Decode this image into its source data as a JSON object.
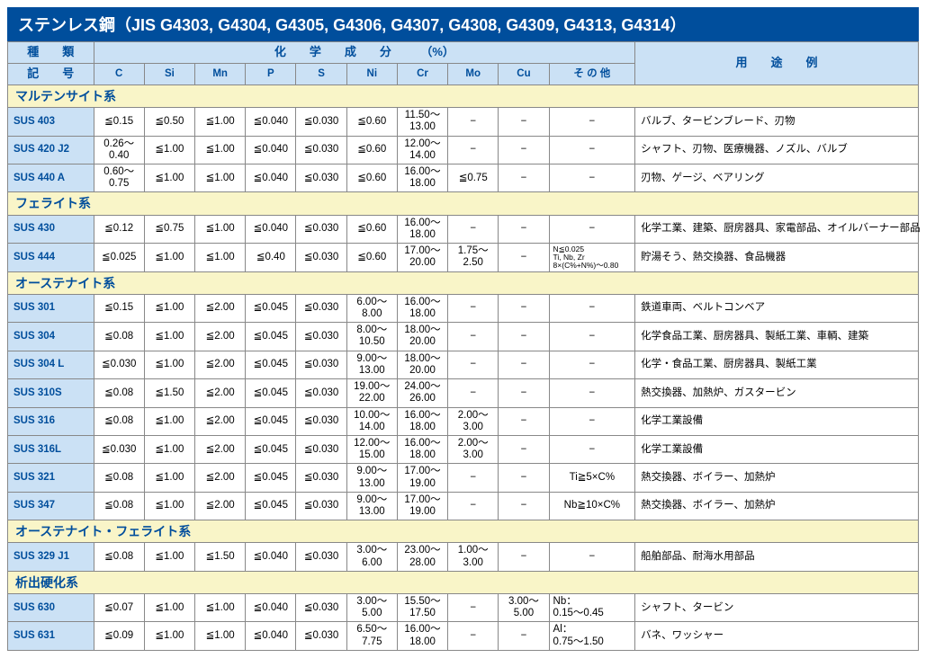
{
  "title": "ステンレス鋼（JIS G4303, G4304, G4305, G4306, G4307, G4308, G4309, G4313, G4314）",
  "headers": {
    "type_kind": "種　　類",
    "chem_group": "化　　学　　成　　分　　　（%）",
    "usage": "用　　途　　例",
    "symbol": "記　　号",
    "cols": [
      "C",
      "Si",
      "Mn",
      "P",
      "S",
      "Ni",
      "Cr",
      "Mo",
      "Cu",
      "そ の 他"
    ]
  },
  "sections": [
    {
      "name": "マルテンサイト系",
      "rows": [
        {
          "grade": "SUS 403",
          "c": "≦0.15",
          "si": "≦0.50",
          "mn": "≦1.00",
          "p": "≦0.040",
          "s": "≦0.030",
          "ni": "≦0.60",
          "cr": "11.50～<br>13.00",
          "mo": "−",
          "cu": "−",
          "other": "−",
          "usage": "バルブ、タービンブレード、刃物"
        },
        {
          "grade": "SUS 420 J2",
          "c": "0.26～<br>0.40",
          "si": "≦1.00",
          "mn": "≦1.00",
          "p": "≦0.040",
          "s": "≦0.030",
          "ni": "≦0.60",
          "cr": "12.00～<br>14.00",
          "mo": "−",
          "cu": "−",
          "other": "−",
          "usage": "シャフト、刃物、医療機器、ノズル、バルブ"
        },
        {
          "grade": "SUS 440 A",
          "c": "0.60～<br>0.75",
          "si": "≦1.00",
          "mn": "≦1.00",
          "p": "≦0.040",
          "s": "≦0.030",
          "ni": "≦0.60",
          "cr": "16.00～<br>18.00",
          "mo": "≦0.75",
          "cu": "−",
          "other": "−",
          "usage": "刃物、ゲージ、ベアリング"
        }
      ]
    },
    {
      "name": "フェライト系",
      "rows": [
        {
          "grade": "SUS 430",
          "c": "≦0.12",
          "si": "≦0.75",
          "mn": "≦1.00",
          "p": "≦0.040",
          "s": "≦0.030",
          "ni": "≦0.60",
          "cr": "16.00～<br>18.00",
          "mo": "−",
          "cu": "−",
          "other": "−",
          "usage": "化学工業、建築、厨房器具、家電部品、オイルバーナー部品"
        },
        {
          "grade": "SUS 444",
          "c": "≦0.025",
          "si": "≦1.00",
          "mn": "≦1.00",
          "p": "≦0.40",
          "s": "≦0.030",
          "ni": "≦0.60",
          "cr": "17.00～<br>20.00",
          "mo": "1.75～<br>2.50",
          "cu": "−",
          "other": "<div class=\"small-note\">N≦0.025<br>Ti, Nb, Zr<br>8×(C%+N%)～0.80</div>",
          "usage": "貯湯そう、熱交換器、食品機器"
        }
      ]
    },
    {
      "name": "オーステナイト系",
      "rows": [
        {
          "grade": "SUS 301",
          "c": "≦0.15",
          "si": "≦1.00",
          "mn": "≦2.00",
          "p": "≦0.045",
          "s": "≦0.030",
          "ni": "6.00～<br>8.00",
          "cr": "16.00～<br>18.00",
          "mo": "−",
          "cu": "−",
          "other": "−",
          "usage": "鉄道車両、ベルトコンベア"
        },
        {
          "grade": "SUS 304",
          "c": "≦0.08",
          "si": "≦1.00",
          "mn": "≦2.00",
          "p": "≦0.045",
          "s": "≦0.030",
          "ni": "8.00～<br>10.50",
          "cr": "18.00～<br>20.00",
          "mo": "−",
          "cu": "−",
          "other": "−",
          "usage": "化学食品工業、厨房器具、製紙工業、車輌、建築"
        },
        {
          "grade": "SUS 304 L",
          "c": "≦0.030",
          "si": "≦1.00",
          "mn": "≦2.00",
          "p": "≦0.045",
          "s": "≦0.030",
          "ni": "9.00～<br>13.00",
          "cr": "18.00～<br>20.00",
          "mo": "−",
          "cu": "−",
          "other": "−",
          "usage": "化学・食品工業、厨房器具、製紙工業"
        },
        {
          "grade": "SUS 310S",
          "c": "≦0.08",
          "si": "≦1.50",
          "mn": "≦2.00",
          "p": "≦0.045",
          "s": "≦0.030",
          "ni": "19.00～<br>22.00",
          "cr": "24.00～<br>26.00",
          "mo": "−",
          "cu": "−",
          "other": "−",
          "usage": "熱交換器、加熱炉、ガスタービン"
        },
        {
          "grade": "SUS 316",
          "c": "≦0.08",
          "si": "≦1.00",
          "mn": "≦2.00",
          "p": "≦0.045",
          "s": "≦0.030",
          "ni": "10.00～<br>14.00",
          "cr": "16.00～<br>18.00",
          "mo": "2.00～<br>3.00",
          "cu": "−",
          "other": "−",
          "usage": "化学工業設備"
        },
        {
          "grade": "SUS 316L",
          "c": "≦0.030",
          "si": "≦1.00",
          "mn": "≦2.00",
          "p": "≦0.045",
          "s": "≦0.030",
          "ni": "12.00～<br>15.00",
          "cr": "16.00～<br>18.00",
          "mo": "2.00～<br>3.00",
          "cu": "−",
          "other": "−",
          "usage": "化学工業設備"
        },
        {
          "grade": "SUS 321",
          "c": "≦0.08",
          "si": "≦1.00",
          "mn": "≦2.00",
          "p": "≦0.045",
          "s": "≦0.030",
          "ni": "9.00～<br>13.00",
          "cr": "17.00～<br>19.00",
          "mo": "−",
          "cu": "−",
          "other": "Ti≧5×C%",
          "usage": "熱交換器、ボイラー、加熱炉"
        },
        {
          "grade": "SUS 347",
          "c": "≦0.08",
          "si": "≦1.00",
          "mn": "≦2.00",
          "p": "≦0.045",
          "s": "≦0.030",
          "ni": "9.00～<br>13.00",
          "cr": "17.00～<br>19.00",
          "mo": "−",
          "cu": "−",
          "other": "Nb≧10×C%",
          "usage": "熱交換器、ボイラー、加熱炉"
        }
      ]
    },
    {
      "name": "オーステナイト・フェライト系",
      "rows": [
        {
          "grade": "SUS 329 J1",
          "c": "≦0.08",
          "si": "≦1.00",
          "mn": "≦1.50",
          "p": "≦0.040",
          "s": "≦0.030",
          "ni": "3.00～<br>6.00",
          "cr": "23.00～<br>28.00",
          "mo": "1.00～<br>3.00",
          "cu": "−",
          "other": "−",
          "usage": "船舶部品、耐海水用部品"
        }
      ]
    },
    {
      "name": "析出硬化系",
      "rows": [
        {
          "grade": "SUS 630",
          "c": "≦0.07",
          "si": "≦1.00",
          "mn": "≦1.00",
          "p": "≦0.040",
          "s": "≦0.030",
          "ni": "3.00～<br>5.00",
          "cr": "15.50～<br>17.50",
          "mo": "−",
          "cu": "3.00～<br>5.00",
          "other": "Nb：<br>0.15～0.45",
          "other_align": "left",
          "usage": "シャフト、タービン"
        },
        {
          "grade": "SUS 631",
          "c": "≦0.09",
          "si": "≦1.00",
          "mn": "≦1.00",
          "p": "≦0.040",
          "s": "≦0.030",
          "ni": "6.50～<br>7.75",
          "cr": "16.00～<br>18.00",
          "mo": "−",
          "cu": "−",
          "other": "Al：<br>0.75～1.50",
          "other_align": "left",
          "usage": "バネ、ワッシャー"
        }
      ]
    }
  ]
}
